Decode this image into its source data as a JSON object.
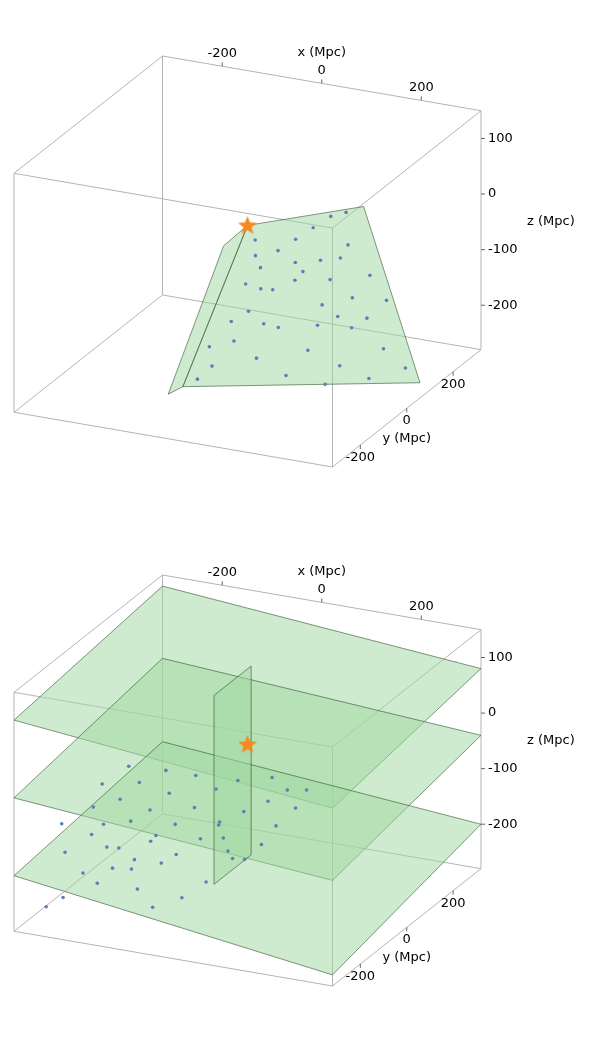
{
  "chart_data": [
    {
      "type": "scatter3d",
      "xlabel": "x (Mpc)",
      "ylabel": "y (Mpc)",
      "zlabel": "z (Mpc)",
      "xlim": [
        -320,
        320
      ],
      "ylim": [
        -320,
        320
      ],
      "zlim": [
        -280,
        150
      ],
      "xticks": [
        -200,
        0,
        200
      ],
      "yticks": [
        -200,
        0,
        200
      ],
      "zticks": [
        -200,
        -100,
        0,
        100
      ],
      "color": "#5b7fb8",
      "marker": "circle",
      "points": [
        [
          20,
          -10,
          -20
        ],
        [
          40,
          -30,
          -60
        ],
        [
          60,
          -20,
          -100
        ],
        [
          30,
          -60,
          -130
        ],
        [
          10,
          -80,
          -180
        ],
        [
          -20,
          -110,
          -220
        ],
        [
          -40,
          -130,
          -240
        ],
        [
          80,
          -40,
          -20
        ],
        [
          120,
          -50,
          10
        ],
        [
          160,
          -60,
          40
        ],
        [
          200,
          -70,
          70
        ],
        [
          240,
          -90,
          90
        ],
        [
          100,
          -10,
          -80
        ],
        [
          150,
          0,
          -120
        ],
        [
          200,
          20,
          -160
        ],
        [
          250,
          50,
          -200
        ],
        [
          280,
          80,
          -240
        ],
        [
          130,
          -40,
          -50
        ],
        [
          180,
          -30,
          -60
        ],
        [
          220,
          -20,
          -90
        ],
        [
          260,
          -30,
          -40
        ],
        [
          90,
          -60,
          -150
        ],
        [
          140,
          -40,
          -190
        ],
        [
          190,
          -10,
          -220
        ],
        [
          60,
          -90,
          -200
        ],
        [
          110,
          -70,
          -230
        ],
        [
          170,
          -30,
          -250
        ],
        [
          230,
          30,
          -250
        ],
        [
          50,
          -50,
          -90
        ],
        [
          70,
          -80,
          -140
        ],
        [
          210,
          -50,
          -10
        ],
        [
          170,
          -50,
          -20
        ],
        [
          110,
          -30,
          -40
        ],
        [
          240,
          0,
          -130
        ],
        [
          270,
          20,
          -100
        ],
        [
          30,
          -30,
          -40
        ],
        [
          15,
          -40,
          -90
        ],
        [
          0,
          -70,
          -150
        ],
        [
          -30,
          -100,
          -190
        ],
        [
          150,
          -20,
          -150
        ],
        [
          200,
          -40,
          -120
        ],
        [
          230,
          -60,
          20
        ]
      ],
      "star": {
        "x": 0,
        "y": 0,
        "z": 0,
        "color": "#f5891f",
        "marker": "star"
      },
      "surfaces": [
        {
          "color": "#9fd89f",
          "vertices": [
            [
              0,
              0,
              0
            ],
            [
              280,
              -100,
              110
            ],
            [
              300,
              100,
              -270
            ],
            [
              -60,
              -150,
              -250
            ]
          ]
        },
        {
          "color": "#9fd89f",
          "vertices": [
            [
              0,
              0,
              0
            ],
            [
              -20,
              -60,
              -20
            ],
            [
              -80,
              -170,
              -260
            ],
            [
              -60,
              -150,
              -250
            ]
          ]
        }
      ]
    },
    {
      "type": "scatter3d",
      "xlabel": "x (Mpc)",
      "ylabel": "y (Mpc)",
      "zlabel": "z (Mpc)",
      "xlim": [
        -320,
        320
      ],
      "ylim": [
        -320,
        320
      ],
      "zlim": [
        -280,
        150
      ],
      "xticks": [
        -200,
        0,
        200
      ],
      "yticks": [
        -200,
        0,
        200
      ],
      "zticks": [
        -200,
        -100,
        0,
        100
      ],
      "color": "#5b7fb8",
      "marker": "circle",
      "points": [
        [
          -250,
          -250,
          -150
        ],
        [
          -200,
          -280,
          -170
        ],
        [
          -150,
          -260,
          -160
        ],
        [
          -220,
          -200,
          -130
        ],
        [
          -180,
          -220,
          -140
        ],
        [
          -120,
          -230,
          -150
        ],
        [
          -100,
          -180,
          -120
        ],
        [
          -160,
          -160,
          -110
        ],
        [
          -240,
          -150,
          -100
        ],
        [
          -200,
          -120,
          -90
        ],
        [
          -140,
          -120,
          -100
        ],
        [
          -80,
          -140,
          -110
        ],
        [
          -60,
          -100,
          -90
        ],
        [
          -120,
          -80,
          -80
        ],
        [
          -180,
          -80,
          -70
        ],
        [
          -250,
          -90,
          -80
        ],
        [
          -280,
          -200,
          -120
        ],
        [
          -50,
          -200,
          -140
        ],
        [
          -20,
          -160,
          -120
        ],
        [
          0,
          -120,
          -100
        ],
        [
          30,
          -80,
          -90
        ],
        [
          60,
          -40,
          -80
        ],
        [
          80,
          0,
          -70
        ],
        [
          100,
          40,
          -80
        ],
        [
          40,
          20,
          -60
        ],
        [
          -10,
          -20,
          -60
        ],
        [
          -40,
          -50,
          -70
        ],
        [
          -90,
          -30,
          -60
        ],
        [
          -150,
          -30,
          -60
        ],
        [
          -220,
          -40,
          -60
        ],
        [
          -100,
          -260,
          -190
        ],
        [
          -60,
          -280,
          -210
        ],
        [
          -20,
          -240,
          -200
        ],
        [
          10,
          -200,
          -180
        ],
        [
          -30,
          -60,
          -130
        ],
        [
          -30,
          -40,
          -160
        ],
        [
          -30,
          -20,
          -190
        ],
        [
          -30,
          0,
          -210
        ],
        [
          -20,
          30,
          -220
        ],
        [
          0,
          60,
          -200
        ],
        [
          20,
          80,
          -170
        ],
        [
          50,
          100,
          -140
        ],
        [
          -140,
          -200,
          -180
        ],
        [
          -190,
          -240,
          -200
        ],
        [
          -240,
          -280,
          -220
        ],
        [
          -260,
          -310,
          -230
        ],
        [
          -80,
          -200,
          -160
        ],
        [
          -120,
          -160,
          -140
        ],
        [
          -170,
          -190,
          -150
        ],
        [
          -210,
          -170,
          -120
        ]
      ],
      "star": {
        "x": 0,
        "y": 0,
        "z": 0,
        "color": "#f5891f",
        "marker": "star"
      },
      "surfaces": [
        {
          "color": "#9fd89f",
          "vertices": [
            [
              -320,
              -320,
              100
            ],
            [
              320,
              -320,
              40
            ],
            [
              320,
              320,
              80
            ],
            [
              -320,
              320,
              130
            ]
          ]
        },
        {
          "color": "#9fd89f",
          "vertices": [
            [
              -320,
              -320,
              -40
            ],
            [
              320,
              -320,
              -90
            ],
            [
              320,
              320,
              -40
            ],
            [
              -320,
              320,
              0
            ]
          ]
        },
        {
          "color": "#9fd89f",
          "vertices": [
            [
              -320,
              -320,
              -180
            ],
            [
              320,
              -320,
              -260
            ],
            [
              320,
              320,
              -200
            ],
            [
              -320,
              320,
              -150
            ]
          ]
        },
        {
          "color": "#9fd89f",
          "vertices": [
            [
              -30,
              -80,
              -230
            ],
            [
              -30,
              80,
              -230
            ],
            [
              -30,
              80,
              110
            ],
            [
              -30,
              -80,
              110
            ]
          ]
        }
      ]
    }
  ]
}
